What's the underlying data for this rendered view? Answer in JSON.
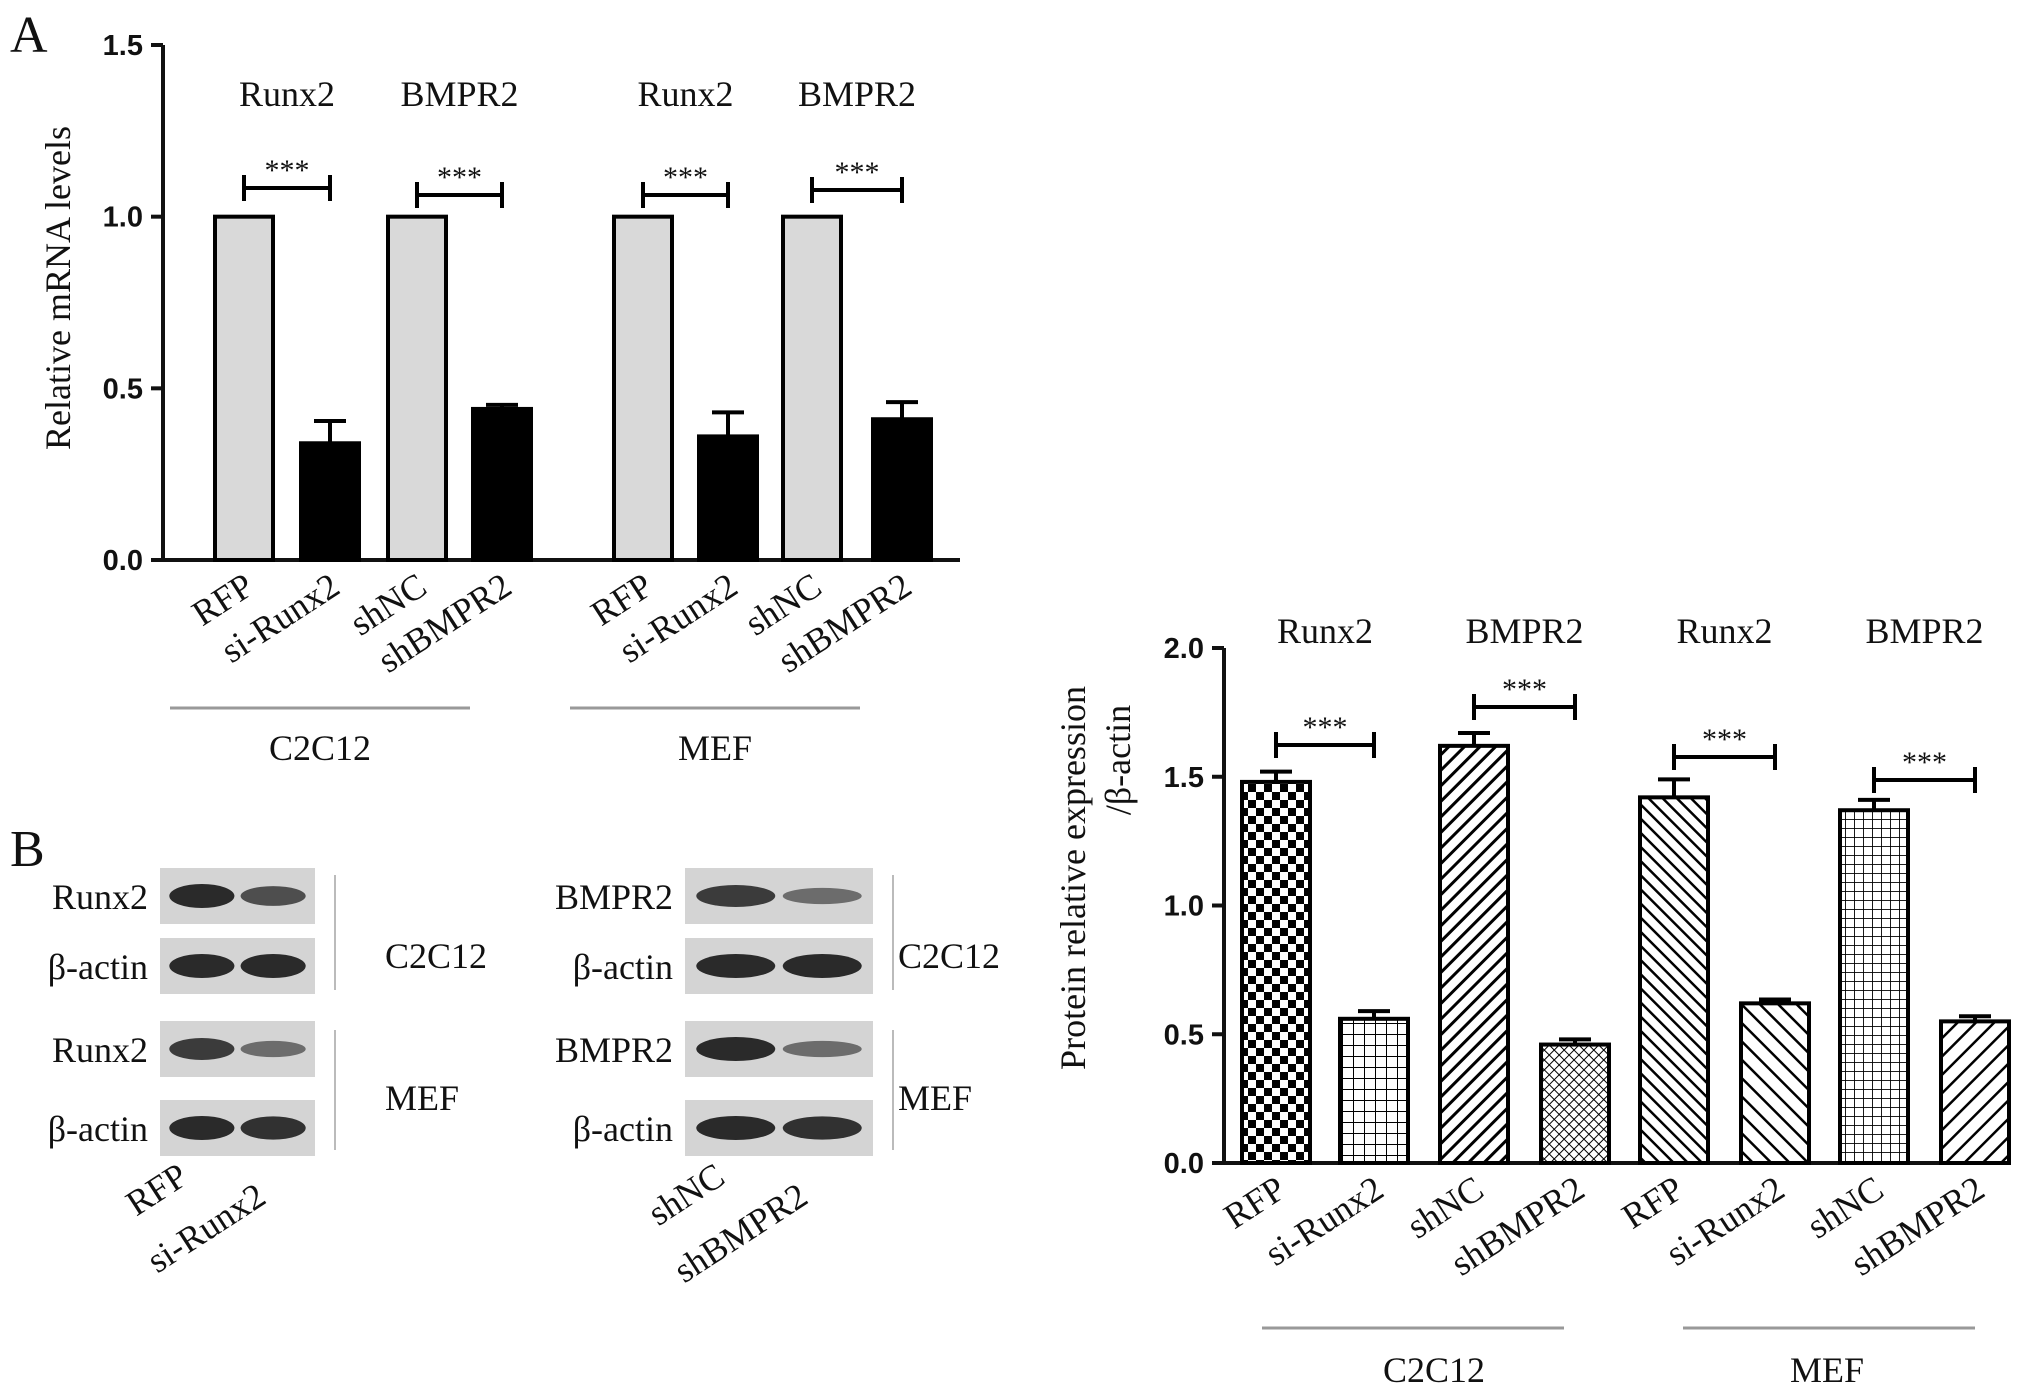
{
  "colors": {
    "light_bar": "#d9d9d9",
    "dark_bar": "#000000",
    "axis": "#111111",
    "group_line": "#999999",
    "blot_bg": "#d4d4d4",
    "band": "#2a2a2a"
  },
  "panels": {
    "a": "A",
    "b": "B"
  },
  "chart_data": [
    {
      "type": "bar",
      "ylabel": "Relative mRNA levels",
      "ylim": [
        0,
        1.5
      ],
      "yticks": [
        "0.0",
        "0.5",
        "1.0",
        "1.5"
      ],
      "categories": [
        "RFP",
        "si-Runx2",
        "shNC",
        "shBMPR2",
        "RFP",
        "si-Runx2",
        "shNC",
        "shBMPR2"
      ],
      "values": [
        1.0,
        0.34,
        1.0,
        0.44,
        1.0,
        0.36,
        1.0,
        0.41
      ],
      "errors": [
        0,
        0.065,
        0,
        0.012,
        0,
        0.07,
        0,
        0.05
      ],
      "bar_fill": [
        "light",
        "dark",
        "light",
        "dark",
        "light",
        "dark",
        "light",
        "dark"
      ],
      "gene_labels": [
        "Runx2",
        "BMPR2",
        "Runx2",
        "BMPR2"
      ],
      "significance": [
        "***",
        "***",
        "***",
        "***"
      ],
      "groups": [
        "C2C12",
        "MEF"
      ]
    },
    {
      "type": "bar",
      "ylabel": [
        "Protein relative expression",
        "/β-actin"
      ],
      "ylim": [
        0,
        2.0
      ],
      "yticks": [
        "0.0",
        "0.5",
        "1.0",
        "1.5",
        "2.0"
      ],
      "categories": [
        "RFP",
        "si-Runx2",
        "shNC",
        "shBMPR2",
        "RFP",
        "si-Runx2",
        "shNC",
        "shBMPR2"
      ],
      "values": [
        1.48,
        0.56,
        1.62,
        0.46,
        1.42,
        0.62,
        1.37,
        0.55
      ],
      "errors": [
        0.04,
        0.03,
        0.05,
        0.02,
        0.07,
        0.015,
        0.04,
        0.02
      ],
      "patterns": [
        "checker",
        "grid",
        "diag-fwd",
        "cross-fine",
        "diag-back",
        "diag-back-wide",
        "grid-fine",
        "diag-fwd-wide"
      ],
      "gene_labels": [
        "Runx2",
        "BMPR2",
        "Runx2",
        "BMPR2"
      ],
      "significance": [
        "***",
        "***",
        "***",
        "***"
      ],
      "groups": [
        "C2C12",
        "MEF"
      ]
    }
  ],
  "blots": {
    "left": {
      "rows": [
        "Runx2",
        "β-actin",
        "Runx2",
        "β-actin"
      ],
      "cells": [
        "C2C12",
        "MEF"
      ],
      "lanes": [
        "RFP",
        "si-Runx2"
      ],
      "band_intensity": [
        [
          1.0,
          0.7
        ],
        [
          1.0,
          1.0
        ],
        [
          0.85,
          0.45
        ],
        [
          1.0,
          0.95
        ]
      ]
    },
    "right": {
      "rows": [
        "BMPR2",
        "β-actin",
        "BMPR2",
        "β-actin"
      ],
      "cells": [
        "C2C12",
        "MEF"
      ],
      "lanes": [
        "shNC",
        "shBMPR2"
      ],
      "band_intensity": [
        [
          0.85,
          0.45
        ],
        [
          1.0,
          1.0
        ],
        [
          1.0,
          0.45
        ],
        [
          1.0,
          0.95
        ]
      ]
    }
  }
}
